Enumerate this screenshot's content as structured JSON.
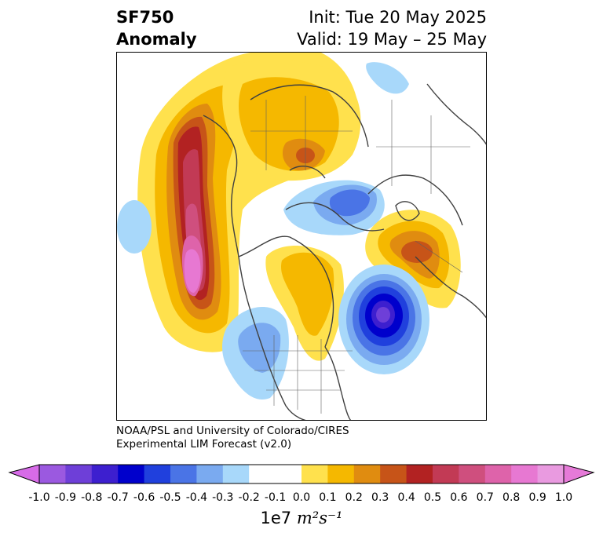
{
  "title": {
    "left_line1": "SF750",
    "left_line2": "Anomaly",
    "right_line1": "Init: Tue 20 May 2025",
    "right_line2": "Valid: 19 May – 25 May"
  },
  "credit": {
    "line1": "NOAA/PSL and University of Colorado/CIRES",
    "line2": "Experimental LIM Forecast (v2.0)"
  },
  "colorbar": {
    "levels": [
      "-1.0",
      "-0.9",
      "-0.8",
      "-0.7",
      "-0.6",
      "-0.5",
      "-0.4",
      "-0.3",
      "-0.2",
      "-0.1",
      "0.0",
      "0.1",
      "0.2",
      "0.3",
      "0.4",
      "0.5",
      "0.6",
      "0.7",
      "0.8",
      "0.9",
      "1.0"
    ],
    "colors": [
      "#9b59e0",
      "#6e3fd8",
      "#3d1fcf",
      "#0000cc",
      "#2040dd",
      "#4a74e6",
      "#7aaaf0",
      "#a8d8fa",
      "#ffffff",
      "#ffffff",
      "#ffe14d",
      "#f5b800",
      "#e08c10",
      "#c75418",
      "#b22222",
      "#c23a55",
      "#cf4f7e",
      "#de63aa",
      "#e778d2",
      "#e99ae0"
    ],
    "extend_low_color": "#d76be8",
    "extend_high_color": "#e67ad8",
    "unit_prefix": "1e7",
    "unit_label": "m²s⁻¹"
  }
}
